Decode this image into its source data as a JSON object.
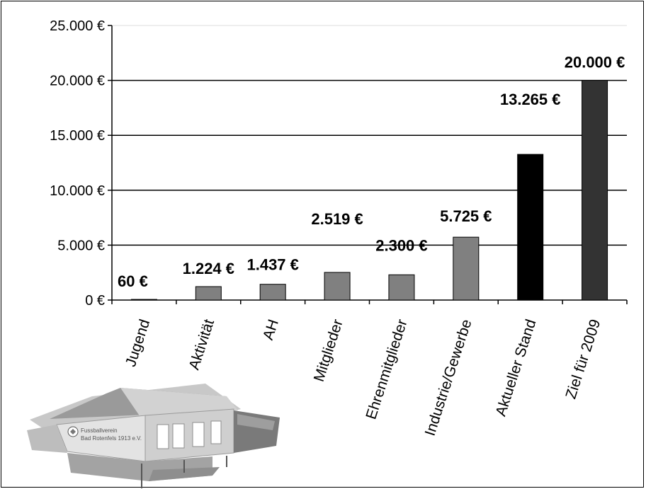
{
  "chart_data": {
    "type": "bar",
    "title": "",
    "xlabel": "",
    "ylabel": "",
    "ylim": [
      0,
      25000
    ],
    "y_ticks": [
      0,
      5000,
      10000,
      15000,
      20000,
      25000
    ],
    "y_tick_labels": [
      "0 €",
      "5.000 €",
      "10.000 €",
      "15.000 €",
      "20.000 €",
      "25.000 €"
    ],
    "grid": "horizontal",
    "legend": "none",
    "categories": [
      "Jugend",
      "Aktivität",
      "AH",
      "Mitglieder",
      "Ehrenmitglieder",
      "Industrie/Gewerbe",
      "Aktueller Stand",
      "Ziel für 2009"
    ],
    "values": [
      60,
      1224,
      1437,
      2519,
      2300,
      5725,
      13265,
      20000
    ],
    "data_labels": [
      "60 €",
      "1.224 €",
      "1.437 €",
      "2.519 €",
      "2.300 €",
      "5.725 €",
      "13.265 €",
      "20.000 €"
    ],
    "bar_colors": [
      "#808080",
      "#808080",
      "#808080",
      "#808080",
      "#808080",
      "#808080",
      "#000000",
      "#333333"
    ]
  },
  "logo": {
    "name": "clubhouse-illustration",
    "text_line1": "Fussballverein",
    "text_line2": "Bad Rotenfels 1913 e.V."
  }
}
